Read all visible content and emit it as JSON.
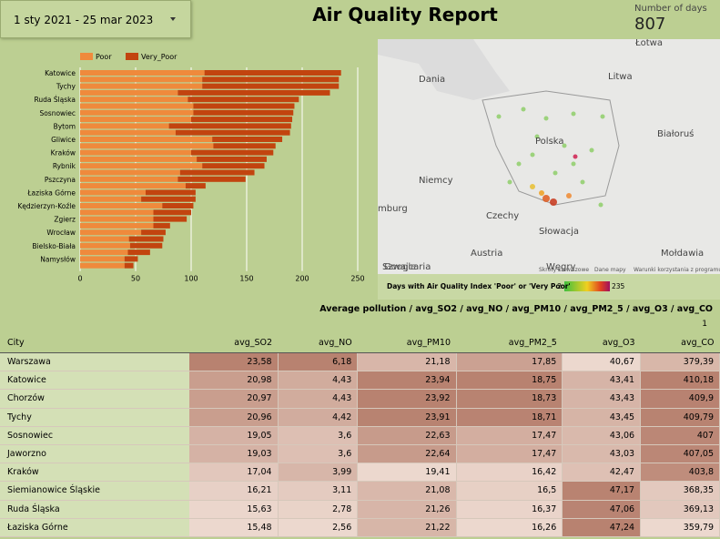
{
  "header": {
    "date_range": "1 sty 2021 - 25 mar 2023",
    "title": "Air Quality Report",
    "days_label": "Number of days",
    "days_value": "807"
  },
  "chart_data": {
    "type": "bar",
    "orientation": "horizontal",
    "stacked": true,
    "categories": [
      "Katowice",
      null,
      "Tychy",
      null,
      "Ruda Śląska",
      null,
      "Sosnowiec",
      null,
      "Bytom",
      null,
      "Gliwice",
      null,
      "Kraków",
      null,
      "Rybnik",
      null,
      "Pszczyna",
      null,
      "Łaziska Górne",
      null,
      "Kędzierzyn-Koźle",
      null,
      "Zgierz",
      null,
      "Wrocław",
      null,
      "Bielsko-Biała",
      null,
      "Namysłów",
      null
    ],
    "series": [
      {
        "name": "Poor",
        "color": "#ef8a3c",
        "values": [
          112,
          110,
          110,
          88,
          97,
          102,
          102,
          100,
          80,
          86,
          119,
          120,
          100,
          105,
          110,
          90,
          88,
          95,
          59,
          55,
          74,
          66,
          66,
          66,
          55,
          44,
          45,
          43,
          40,
          40
        ]
      },
      {
        "name": "Very_Poor",
        "color": "#c2440f",
        "values": [
          123,
          123,
          123,
          137,
          100,
          91,
          90,
          91,
          110,
          103,
          63,
          56,
          74,
          63,
          56,
          67,
          61,
          18,
          45,
          49,
          28,
          34,
          30,
          15,
          22,
          31,
          29,
          20,
          12,
          8
        ]
      }
    ],
    "xlim": [
      0,
      250
    ],
    "xticks": [
      0,
      50,
      100,
      150,
      200,
      250
    ],
    "grid": true,
    "legend": "top-left"
  },
  "map": {
    "labels": [
      "Łotwa",
      "Dania",
      "Litwa",
      "Polska",
      "Białoruś",
      "Niemcy",
      "mburg",
      "Czechy",
      "Słowacja",
      "Austria",
      "Mołdawia",
      "Węgry",
      "Szwajcaria"
    ],
    "attribution": [
      "Google",
      "Skróty klawiszowe",
      "Dane mapy",
      "Warunki korzystania z programu"
    ],
    "legend_title": "Days with Air Quality Index 'Poor' or 'Very Poor'",
    "legend_min": "2",
    "legend_max": "235"
  },
  "table": {
    "title": "Average pollution / avg_SO2 / avg_NO / avg_PM10 / avg_PM2_5 / avg_O3 / avg_CO",
    "page": "1",
    "columns": [
      "City",
      "avg_SO2",
      "avg_NO",
      "avg_PM10",
      "avg_PM2_5",
      "avg_O3",
      "avg_CO"
    ],
    "rows": [
      [
        "Warszawa",
        "23,58",
        "6,18",
        "21,18",
        "17,85",
        "40,67",
        "379,39"
      ],
      [
        "Katowice",
        "20,98",
        "4,43",
        "23,94",
        "18,75",
        "43,41",
        "410,18"
      ],
      [
        "Chorzów",
        "20,97",
        "4,43",
        "23,92",
        "18,73",
        "43,43",
        "409,9"
      ],
      [
        "Tychy",
        "20,96",
        "4,42",
        "23,91",
        "18,71",
        "43,45",
        "409,79"
      ],
      [
        "Sosnowiec",
        "19,05",
        "3,6",
        "22,63",
        "17,47",
        "43,06",
        "407"
      ],
      [
        "Jaworzno",
        "19,03",
        "3,6",
        "22,64",
        "17,47",
        "43,03",
        "407,05"
      ],
      [
        "Kraków",
        "17,04",
        "3,99",
        "19,41",
        "16,42",
        "42,47",
        "403,8"
      ],
      [
        "Siemianowice Śląskie",
        "16,21",
        "3,11",
        "21,08",
        "16,5",
        "47,17",
        "368,35"
      ],
      [
        "Ruda Śląska",
        "15,63",
        "2,78",
        "21,26",
        "16,37",
        "47,06",
        "369,13"
      ],
      [
        "Łaziska Górne",
        "15,48",
        "2,56",
        "21,22",
        "16,26",
        "47,24",
        "359,79"
      ]
    ]
  }
}
